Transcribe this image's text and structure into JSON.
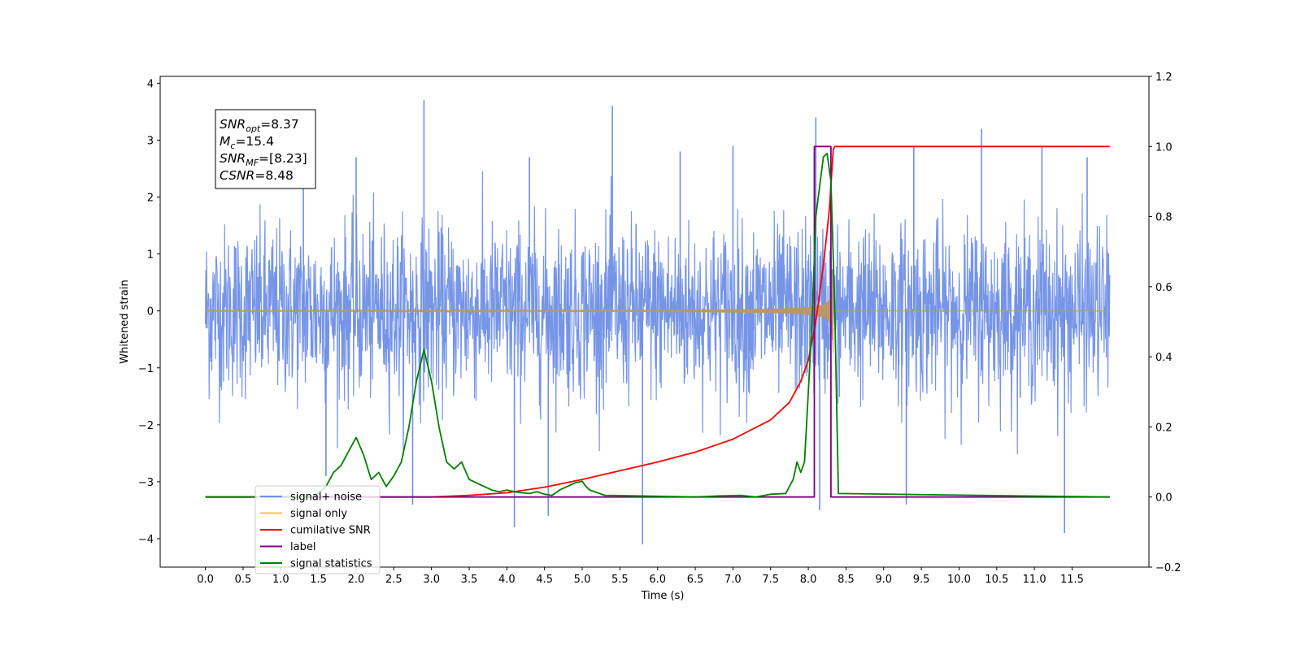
{
  "chart_data": {
    "type": "line",
    "title": "",
    "xlabel": "Time (s)",
    "ylabel": "Whitened strain",
    "xlim": [
      -0.6,
      12.52
    ],
    "ylim": [
      -4.5,
      4.12
    ],
    "y2lim": [
      -0.2,
      1.2
    ],
    "x_ticks": [
      "0.0",
      "0.5",
      "1.0",
      "1.5",
      "2.0",
      "2.5",
      "3.0",
      "3.5",
      "4.0",
      "4.5",
      "5.0",
      "5.5",
      "6.0",
      "6.5",
      "7.0",
      "7.5",
      "8.0",
      "8.5",
      "9.0",
      "9.5",
      "10.0",
      "10.5",
      "11.0",
      "11.5"
    ],
    "y_ticks": [
      "4",
      "3",
      "2",
      "1",
      "0",
      "−1",
      "−2",
      "−3",
      "−4"
    ],
    "y2_ticks": [
      "1.2",
      "1.0",
      "0.8",
      "0.6",
      "0.4",
      "0.2",
      "0.0",
      "−0.2"
    ],
    "grid": false,
    "legend_position": "lower-left",
    "annotation": {
      "lines": [
        {
          "name": "SNR",
          "sub": "opt",
          "value": "=8.37"
        },
        {
          "name": "M",
          "sub": "c",
          "value": "=15.4"
        },
        {
          "name": "SNR",
          "sub": "MF",
          "value": "=[8.23]"
        },
        {
          "name": "CSNR",
          "sub": "",
          "value": "=8.48"
        }
      ]
    },
    "series": [
      {
        "name": "signal+ noise",
        "axis": "left",
        "color": "#6f8fe6",
        "style": "noise",
        "x_range": [
          0.0,
          12.0
        ],
        "sigma": 0.75,
        "peaks": [
          [
            2.9,
            3.7
          ],
          [
            5.4,
            3.6
          ],
          [
            8.1,
            3.4
          ],
          [
            10.3,
            3.2
          ],
          [
            1.3,
            2.6
          ],
          [
            2.0,
            2.7
          ],
          [
            4.3,
            2.7
          ],
          [
            6.3,
            2.8
          ],
          [
            7.0,
            2.9
          ],
          [
            9.4,
            2.9
          ],
          [
            11.1,
            2.9
          ],
          [
            11.7,
            2.7
          ],
          [
            4.1,
            -3.8
          ],
          [
            5.8,
            -4.1
          ],
          [
            8.15,
            -3.5
          ],
          [
            9.3,
            -3.4
          ],
          [
            11.4,
            -3.9
          ],
          [
            1.6,
            -2.9
          ],
          [
            2.75,
            -3.4
          ],
          [
            4.55,
            -3.6
          ]
        ]
      },
      {
        "name": "signal only",
        "axis": "left",
        "color": "#f5b041",
        "style": "chirp",
        "x_range": [
          0.0,
          12.0
        ],
        "t_merge": 8.33,
        "peak_amp": 1.6
      },
      {
        "name": "cumilative SNR",
        "axis": "right",
        "color": "#ff0000",
        "style": "line",
        "x": [
          0,
          3.0,
          3.5,
          4.0,
          4.5,
          5.0,
          5.5,
          6.0,
          6.5,
          7.0,
          7.5,
          7.75,
          7.9,
          8.0,
          8.1,
          8.2,
          8.28,
          8.33,
          8.35,
          12.0
        ],
        "y": [
          0,
          0,
          0.005,
          0.012,
          0.028,
          0.05,
          0.075,
          0.1,
          0.128,
          0.165,
          0.22,
          0.27,
          0.33,
          0.39,
          0.5,
          0.66,
          0.82,
          0.99,
          1.0,
          1.0
        ]
      },
      {
        "name": "label",
        "axis": "right",
        "color": "#800080",
        "style": "line",
        "x": [
          0,
          8.08,
          8.08,
          8.3,
          8.3,
          12.0
        ],
        "y": [
          0,
          0,
          1,
          1,
          0,
          0
        ]
      },
      {
        "name": "signal statistics",
        "axis": "right",
        "color": "#008000",
        "style": "line",
        "x": [
          0,
          1.4,
          1.5,
          1.6,
          1.7,
          1.8,
          1.9,
          2.0,
          2.1,
          2.2,
          2.3,
          2.4,
          2.5,
          2.6,
          2.7,
          2.8,
          2.9,
          3.0,
          3.1,
          3.2,
          3.3,
          3.4,
          3.5,
          3.6,
          3.7,
          3.8,
          3.9,
          4.0,
          4.1,
          4.2,
          4.3,
          4.4,
          4.5,
          4.6,
          4.7,
          4.8,
          4.9,
          5.0,
          5.05,
          5.1,
          5.3,
          6.5,
          6.8,
          7.1,
          7.3,
          7.5,
          7.7,
          7.8,
          7.85,
          7.9,
          7.95,
          8.0,
          8.05,
          8.1,
          8.2,
          8.25,
          8.3,
          8.35,
          8.4,
          12.0
        ],
        "y": [
          0,
          0,
          0.01,
          0.03,
          0.07,
          0.09,
          0.13,
          0.17,
          0.12,
          0.05,
          0.07,
          0.03,
          0.06,
          0.1,
          0.2,
          0.33,
          0.42,
          0.33,
          0.2,
          0.1,
          0.08,
          0.1,
          0.05,
          0.04,
          0.03,
          0.02,
          0.015,
          0.02,
          0.015,
          0.012,
          0.01,
          0.015,
          0.008,
          0.005,
          0.02,
          0.03,
          0.04,
          0.045,
          0.03,
          0.02,
          0.005,
          0,
          0.003,
          0.005,
          0.0,
          0.008,
          0.01,
          0.05,
          0.1,
          0.07,
          0.1,
          0.3,
          0.5,
          0.8,
          0.97,
          0.98,
          0.9,
          0.55,
          0.01,
          0
        ]
      }
    ],
    "legend": [
      {
        "label": "signal+ noise",
        "color": "#6f8fe6"
      },
      {
        "label": "signal only",
        "color": "#f5c04a"
      },
      {
        "label": "cumilative SNR",
        "color": "#ff0000"
      },
      {
        "label": "label",
        "color": "#800080"
      },
      {
        "label": "signal statistics",
        "color": "#008000"
      }
    ]
  }
}
